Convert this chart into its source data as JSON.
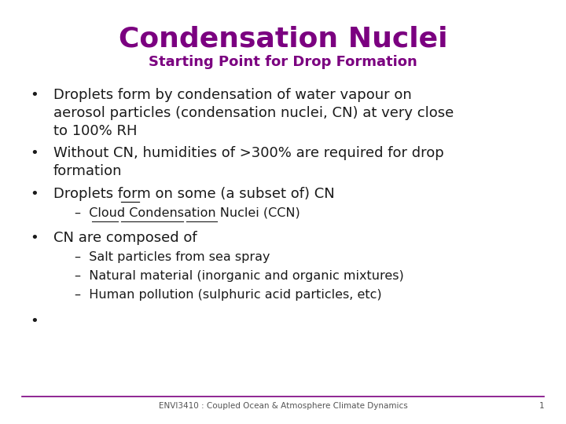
{
  "title": "Condensation Nuclei",
  "subtitle": "Starting Point for Drop Formation",
  "title_color": "#7B0080",
  "subtitle_color": "#7B0080",
  "background_color": "#FFFFFF",
  "text_color": "#1A1A1A",
  "footer_text": "ENVI3410 : Coupled Ocean & Atmosphere Climate Dynamics",
  "footer_page": "1",
  "footer_color": "#555555",
  "line_color": "#7B0080",
  "title_fontsize": 26,
  "subtitle_fontsize": 13,
  "body_fontsize": 13,
  "sub_fontsize": 11.5,
  "footer_fontsize": 7.5
}
